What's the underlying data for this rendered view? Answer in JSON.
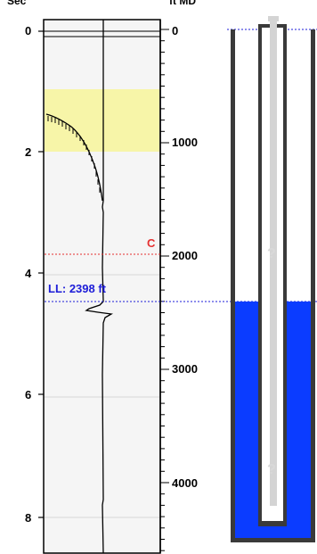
{
  "header": {
    "left_axis_label": "Sec",
    "right_axis_label": "ft MD"
  },
  "time_axis": {
    "ticks": [
      "0",
      "2",
      "4",
      "6",
      "8"
    ]
  },
  "depth_axis": {
    "ticks": [
      "0",
      "1000",
      "2000",
      "3000",
      "4000"
    ]
  },
  "markers": {
    "collar": {
      "label": "C",
      "color": "#e53030"
    },
    "liquid_level": {
      "label": "LL: 2398 ft",
      "color": "#1d1dd8"
    }
  },
  "wellbore": {
    "unknown_top": "?",
    "unknown_bottom": "?",
    "fluid_color": "#0b3cff"
  }
}
